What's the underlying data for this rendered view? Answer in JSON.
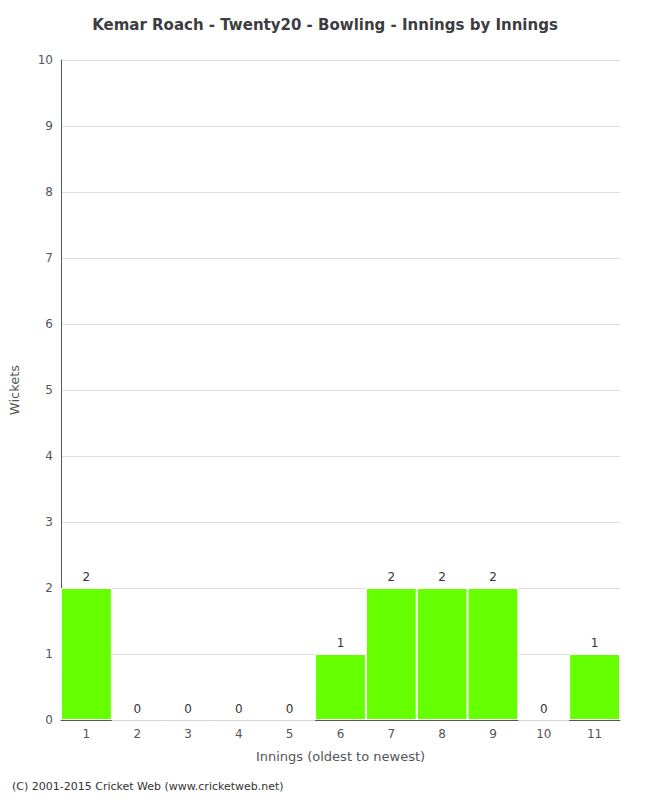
{
  "chart_data": {
    "type": "bar",
    "title": "Kemar Roach - Twenty20 - Bowling - Innings by Innings",
    "xlabel": "Innings (oldest to newest)",
    "ylabel": "Wickets",
    "categories": [
      1,
      2,
      3,
      4,
      5,
      6,
      7,
      8,
      9,
      10,
      11
    ],
    "values": [
      2,
      0,
      0,
      0,
      0,
      1,
      2,
      2,
      2,
      0,
      1
    ],
    "color": "#66ff00",
    "ylim": [
      0,
      10
    ],
    "yticks": [
      0,
      1,
      2,
      3,
      4,
      5,
      6,
      7,
      8,
      9,
      10
    ],
    "grid": true,
    "data_labels": true,
    "annotations": [
      "(C) 2001-2015 Cricket Web (www.cricketweb.net)"
    ]
  }
}
